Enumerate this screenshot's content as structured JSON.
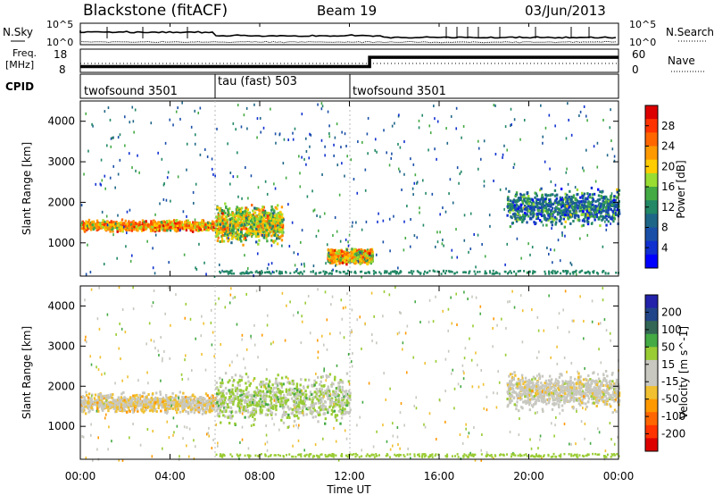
{
  "header": {
    "station": "Blackstone (fitACF)",
    "beam": "Beam 19",
    "date": "03/Jun/2013"
  },
  "noise_panel": {
    "left_label": "N.Sky",
    "left_ticks": [
      "10^5",
      "10^0"
    ],
    "right_label": "N.Search",
    "right_ticks": [
      "10^5",
      "10^0"
    ]
  },
  "freq_panel": {
    "left_label_1": "Freq.",
    "left_label_2": "[MHz]",
    "left_ticks": [
      "18",
      "8"
    ],
    "right_label": "Nave",
    "right_ticks": [
      "60",
      "0"
    ]
  },
  "cpid_panel": {
    "label": "CPID",
    "modes": [
      {
        "name": "twofsound 3501",
        "start_hour": 0
      },
      {
        "name": "tau (fast) 503",
        "start_hour": 6
      },
      {
        "name": "twofsound 3501",
        "start_hour": 12
      }
    ]
  },
  "x_axis": {
    "title": "Time UT",
    "ticks": [
      "00:00",
      "04:00",
      "08:00",
      "12:00",
      "16:00",
      "20:00",
      "00:00"
    ]
  },
  "power_scale": {
    "title": "Power [dB]",
    "labels": [
      "28",
      "24",
      "20",
      "16",
      "12",
      "8",
      "4"
    ],
    "colors": [
      "#dd0000",
      "#ff3300",
      "#ff6600",
      "#ff9900",
      "#ffcc00",
      "#99dd33",
      "#44aa44",
      "#228866",
      "#1e6688",
      "#1a4fa8",
      "#1030d0",
      "#0000ff"
    ]
  },
  "velocity_scale": {
    "title": "Velocity [m s^-1]",
    "labels": [
      "200",
      "100",
      "50",
      "15",
      "-15",
      "-50",
      "-100",
      "-200"
    ],
    "colors": [
      "#2222aa",
      "#224488",
      "#336655",
      "#44aa44",
      "#99cc33",
      "#c8c8c0",
      "#c8c8c0",
      "#f0c030",
      "#ff9900",
      "#ff6600",
      "#ff3300",
      "#dd0000"
    ]
  },
  "chart_data": [
    {
      "type": "heatmap",
      "title": "Power",
      "xlabel": "",
      "ylabel": "Slant Range [km]",
      "x_range_hours": [
        0,
        24
      ],
      "ylim": [
        180,
        4500
      ],
      "yticks": [
        1000,
        2000,
        3000,
        4000
      ],
      "colorbar_label": "Power [dB]",
      "colorbar_ticks": [
        4,
        8,
        12,
        16,
        20,
        24,
        28
      ],
      "features": [
        {
          "label": "band",
          "hours": [
            0,
            6
          ],
          "range_km": [
            1300,
            1600
          ],
          "power_db": 22
        },
        {
          "label": "patch",
          "hours": [
            6,
            9
          ],
          "range_km": [
            1000,
            2000
          ],
          "power_db": 18
        },
        {
          "label": "patch",
          "hours": [
            11,
            13
          ],
          "range_km": [
            500,
            900
          ],
          "power_db": 20
        },
        {
          "label": "patch",
          "hours": [
            19,
            24
          ],
          "range_km": [
            1400,
            2400
          ],
          "power_db": 10
        }
      ]
    },
    {
      "type": "heatmap",
      "title": "Velocity",
      "xlabel": "Time UT",
      "ylabel": "Slant Range [km]",
      "x_range_hours": [
        0,
        24
      ],
      "ylim": [
        180,
        4500
      ],
      "yticks": [
        1000,
        2000,
        3000,
        4000
      ],
      "colorbar_label": "Velocity [m s^-1]",
      "colorbar_ticks": [
        200,
        100,
        50,
        15,
        -15,
        -50,
        -100,
        -200
      ],
      "features": [
        {
          "label": "band",
          "hours": [
            0,
            6
          ],
          "range_km": [
            1300,
            1900
          ],
          "velocity_ms": -30
        },
        {
          "label": "patch",
          "hours": [
            6,
            12
          ],
          "range_km": [
            1000,
            2400
          ],
          "velocity_ms": 40
        },
        {
          "label": "patch",
          "hours": [
            19,
            24
          ],
          "range_km": [
            1400,
            2400
          ],
          "velocity_ms": -10
        }
      ]
    },
    {
      "type": "line",
      "title": "Frequency",
      "ylabel": "Freq. [MHz]",
      "ylim": [
        8,
        18
      ],
      "series": [
        {
          "name": "",
          "x": [
            0,
            12.9,
            12.9,
            24
          ],
          "y": [
            10.5,
            10.5,
            14.5,
            14.5
          ]
        }
      ]
    }
  ]
}
